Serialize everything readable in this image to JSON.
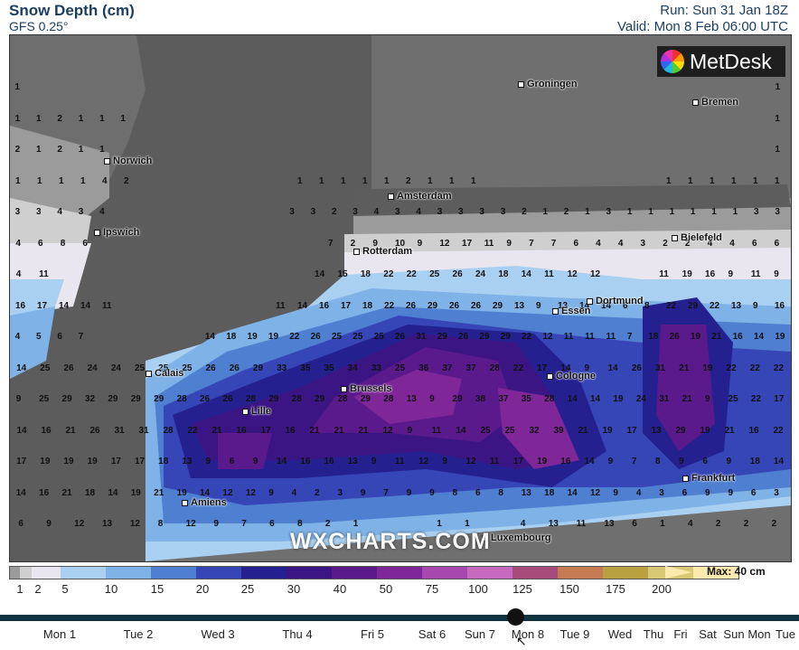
{
  "header": {
    "title": "Snow Depth (cm)",
    "model": "GFS 0.25°",
    "run": "Run: Sun 31 Jan 18Z",
    "valid": "Valid: Mon 8 Feb 06:00 UTC"
  },
  "logo": {
    "text": "MetDesk",
    "icon": "metdesk-logo-icon"
  },
  "watermark": "WXCHARTS.COM",
  "cities": [
    "Groningen",
    "Bremen",
    "Norwich",
    "Amsterdam",
    "Ipswich",
    "Bielefeld",
    "Rotterdam",
    "Dortmund",
    "Essen",
    "Calais",
    "Cologne",
    "Brussels",
    "Lille",
    "Frankfurt",
    "Amiens",
    "Luxembourg"
  ],
  "legend": {
    "max_label": "Max: 40 cm",
    "ticks": [
      "1",
      "2",
      "5",
      "10",
      "15",
      "20",
      "25",
      "30",
      "40",
      "50",
      "75",
      "100",
      "125",
      "150",
      "175",
      "200"
    ],
    "colors": [
      "#9b9b9b",
      "#cfcfcf",
      "#eae6f0",
      "#a9d0f1",
      "#7fb2e6",
      "#4f7fd0",
      "#3646b6",
      "#25208f",
      "#3b1583",
      "#5b1a8c",
      "#7f2799",
      "#a648ad",
      "#c769bf",
      "#a64b7a",
      "#c67a52",
      "#b9a040",
      "#d9c873",
      "#fbe9ad"
    ]
  },
  "map_values": {
    "rows": [
      "1 . . . . . . . . . . . . . . . . . . . . . . . . . . . . . . . . . . . . 1",
      "1 1 2 1 1 1 . . . . . . . . . . . . . . . . . . . . . . . . . . . . . . 1",
      "2 1 2 1 1 . . . . . . . . . . . . . . . . . . . . . . . . . . . . . . . 1",
      "1 1 1 1 4 2 . . . . . . . 1 1 1 1 1 2 1 1 1 . . . . . . . . 1 1 1 1 1 1",
      "3 3 4 3 4 . . . . . . . . 3 3 2 3 4 3 4 3 3 3 3 2 1 2 1 3 1 1 1 1 1 1 3 3",
      "4 6 8 6 . . . . . . . . . . 7 2 9 10 9 12 17 11 9 7 7 6 4 4 3 2 2 4 4 6 6",
      "4 11 . . . . . . . . . . . 14 15 18 22 22 25 26 24 18 14 11 12 12 . . 11 19 16 9 11 9",
      "16 17 14 14 11 . . . . . . . 11 14 16 17 18 22 26 29 26 26 29 13 9 13 14 14 6 8 22 29 22 13 9 16",
      "4 5 6 7 . . . . . 14 18 19 19 22 26 25 25 25 26 31 29 26 29 29 22 12 11 11 11 7 18 26 19 21 16 14 19",
      "14 25 26 24 24 25 25 25 26 26 29 33 35 35 34 33 25 36 37 37 28 22 17 14 9 14 26 31 21 19 22 22 22",
      "9 25 29 32 29 29 29 28 26 26 28 29 28 29 28 29 28 13 9 29 38 37 35 28 14 14 19 24 31 21 9 25 22 17",
      "14 16 21 26 31 31 28 22 21 16 17 16 21 21 21 12 9 11 14 25 25 32 39 21 19 17 13 29 19 21 16 22",
      "17 19 19 19 17 17 18 13 9 6 9 14 16 16 13 9 11 12 9 12 11 17 19 16 14 9 7 8 9 6 9 18 14",
      "14 16 21 18 14 19 21 19 14 12 12 9 4 2 3 9 7 9 9 8 6 8 13 18 14 12 9 4 3 6 9 9 6 3",
      "6 9 12 13 12 8 12 9 7 6 8 2 1 . . 1 1 . 4 13 11 13 6 1 4 2 2 2"
    ]
  }
}
